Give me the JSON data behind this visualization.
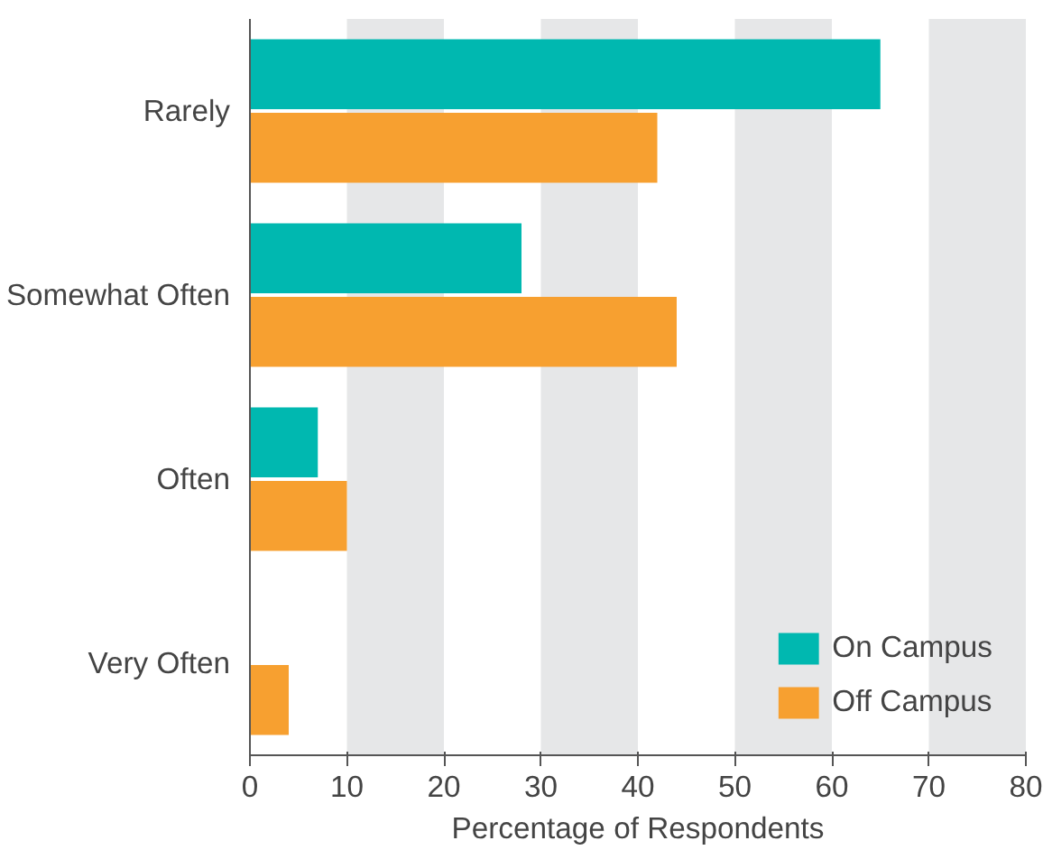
{
  "chart_data": {
    "type": "bar",
    "orientation": "horizontal",
    "xlabel": "Percentage of Respondents",
    "categories": [
      "Rarely",
      "Somewhat Often",
      "Often",
      "Very Often"
    ],
    "series": [
      {
        "name": "On Campus",
        "color": "#00b8b0",
        "values": [
          65,
          28,
          7,
          0
        ]
      },
      {
        "name": "Off Campus",
        "color": "#f7a030",
        "values": [
          42,
          44,
          10,
          4
        ]
      }
    ],
    "xlim": [
      0,
      80
    ],
    "xticks": [
      0,
      10,
      20,
      30,
      40,
      50,
      60,
      70,
      80
    ],
    "bands": [
      {
        "axis": "x",
        "from": 10,
        "to": 20,
        "color": "#e6e7e8"
      },
      {
        "axis": "x",
        "from": 30,
        "to": 40,
        "color": "#e6e7e8"
      },
      {
        "axis": "x",
        "from": 50,
        "to": 60,
        "color": "#e6e7e8"
      },
      {
        "axis": "x",
        "from": 70,
        "to": 80,
        "color": "#e6e7e8"
      }
    ],
    "grid": false,
    "legend": "bottom right"
  }
}
